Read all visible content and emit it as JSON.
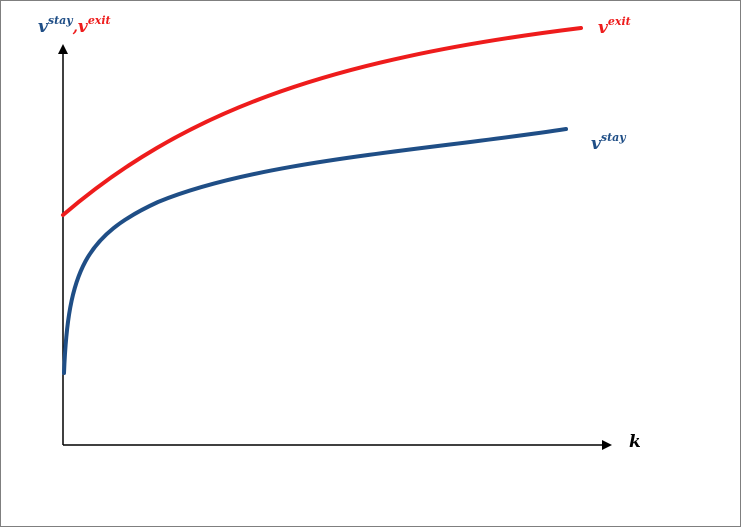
{
  "diagram": {
    "y_axis_label": {
      "stay_base": "v",
      "stay_sup": "stay",
      "separator": ",",
      "exit_base": "v",
      "exit_sup": "exit"
    },
    "x_axis_label": "k",
    "curve_labels": {
      "exit": {
        "base": "v",
        "sup": "exit"
      },
      "stay": {
        "base": "v",
        "sup": "stay"
      }
    },
    "colors": {
      "exit": "#ee1c1c",
      "stay": "#1f4e86",
      "axis": "#000000"
    }
  }
}
